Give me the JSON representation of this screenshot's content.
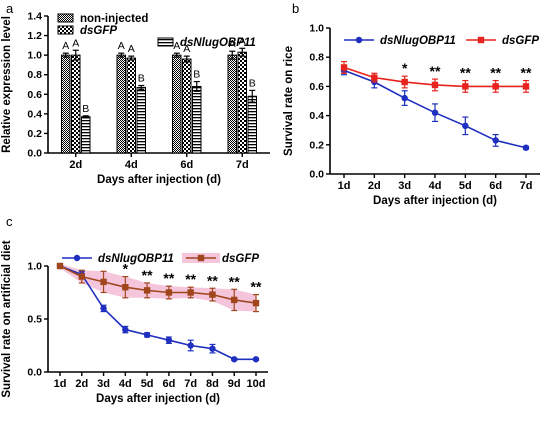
{
  "chart_data": [
    {
      "panel": "a",
      "type": "bar",
      "categories": [
        "2d",
        "4d",
        "6d",
        "7d"
      ],
      "xlabel": "Days after injection (d)",
      "ylabel": "Relative expression level",
      "ylim": [
        0,
        1.4
      ],
      "yticks": [
        "0.0",
        "0.2",
        "0.4",
        "0.6",
        "0.8",
        "1.0",
        "1.2",
        "1.4"
      ],
      "legend_position": "top",
      "series": [
        {
          "name": "non-injected",
          "pattern": "dense-dots",
          "values": [
            1.0,
            1.0,
            1.0,
            1.0
          ],
          "errors": [
            0.02,
            0.02,
            0.02,
            0.04
          ],
          "letters": [
            "A",
            "A",
            "A",
            "A"
          ]
        },
        {
          "name": "dsGFP",
          "pattern": "checker",
          "values": [
            1.0,
            0.97,
            0.96,
            1.03
          ],
          "errors": [
            0.05,
            0.02,
            0.03,
            0.04
          ],
          "letters": [
            "A",
            "A",
            "A",
            "A"
          ]
        },
        {
          "name": "dsNlugOBP11",
          "pattern": "horizontal-stripes",
          "values": [
            0.37,
            0.67,
            0.68,
            0.58
          ],
          "errors": [
            0.01,
            0.02,
            0.05,
            0.06
          ],
          "letters": [
            "B",
            "B",
            "B",
            "B"
          ]
        }
      ]
    },
    {
      "panel": "b",
      "type": "line",
      "categories": [
        "1d",
        "2d",
        "3d",
        "4d",
        "5d",
        "6d",
        "7d"
      ],
      "xlabel": "Days after injection (d)",
      "ylabel": "Survival rate on rice",
      "ylim": [
        0,
        1.0
      ],
      "yticks": [
        "0.0",
        "0.2",
        "0.4",
        "0.6",
        "0.8",
        "1.0"
      ],
      "legend_position": "top",
      "significance": [
        "",
        "",
        "*",
        "**",
        "**",
        "**",
        "**"
      ],
      "series": [
        {
          "name": "dsNlugOBP11",
          "color": "#1f2fbf",
          "marker": "circle",
          "values": [
            0.71,
            0.63,
            0.52,
            0.42,
            0.33,
            0.23,
            0.18
          ],
          "errors": [
            0.03,
            0.04,
            0.05,
            0.06,
            0.06,
            0.04,
            0.01
          ]
        },
        {
          "name": "dsGFP",
          "color": "#e8221c",
          "marker": "square",
          "values": [
            0.73,
            0.66,
            0.63,
            0.61,
            0.6,
            0.6,
            0.6
          ],
          "errors": [
            0.04,
            0.03,
            0.04,
            0.04,
            0.04,
            0.04,
            0.04
          ]
        }
      ]
    },
    {
      "panel": "c",
      "type": "line",
      "categories": [
        "1d",
        "2d",
        "3d",
        "4d",
        "5d",
        "6d",
        "7d",
        "8d",
        "9d",
        "10d"
      ],
      "xlabel": "Days after injection (d)",
      "ylabel": "Survival rate on artificial diet",
      "ylim": [
        0,
        1.0
      ],
      "yticks": [
        "0.0",
        "0.5",
        "1.0"
      ],
      "legend_position": "top",
      "significance": [
        "",
        "",
        "",
        "*",
        "**",
        "**",
        "**",
        "**",
        "**",
        "**"
      ],
      "series": [
        {
          "name": "dsNlugOBP11",
          "color": "#1f2fbf",
          "marker": "circle",
          "values": [
            1.0,
            0.92,
            0.6,
            0.4,
            0.35,
            0.3,
            0.25,
            0.22,
            0.12,
            0.12
          ],
          "errors": [
            0.01,
            0.03,
            0.03,
            0.03,
            0.02,
            0.03,
            0.05,
            0.04,
            0.01,
            0.01
          ]
        },
        {
          "name": "dsGFP",
          "color": "#a0451c",
          "band": "#f2b8d2",
          "marker": "square",
          "values": [
            1.0,
            0.9,
            0.85,
            0.8,
            0.77,
            0.75,
            0.75,
            0.73,
            0.68,
            0.65
          ],
          "errors": [
            0.02,
            0.06,
            0.1,
            0.1,
            0.07,
            0.06,
            0.05,
            0.06,
            0.1,
            0.08
          ]
        }
      ]
    }
  ]
}
